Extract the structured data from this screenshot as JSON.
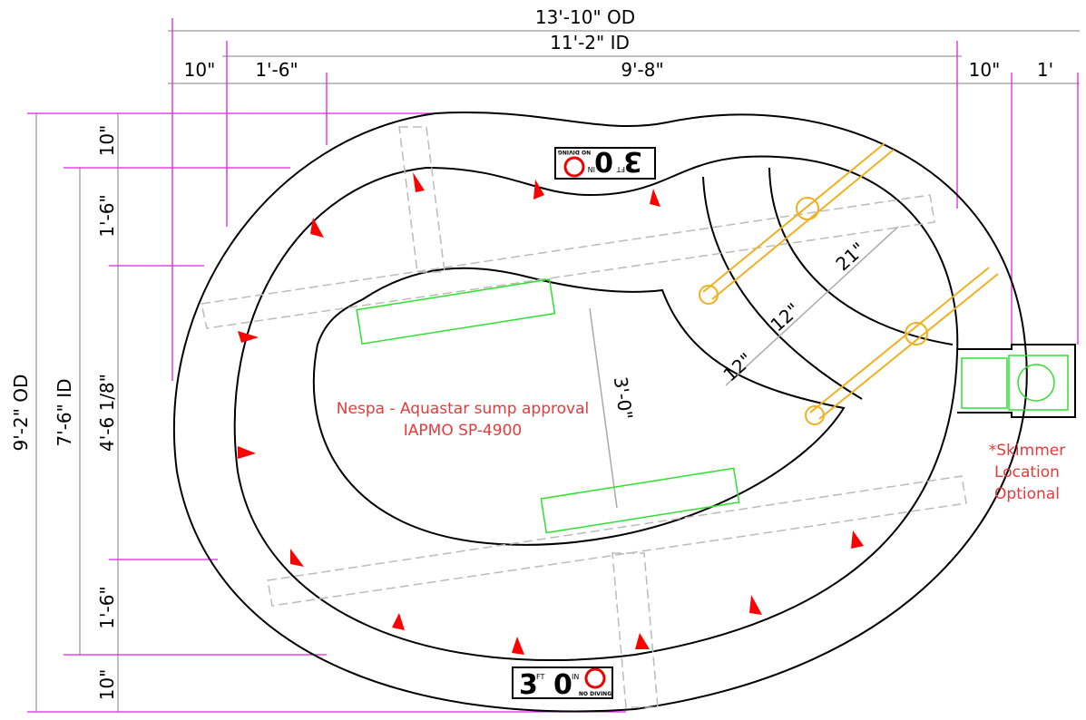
{
  "dimensions": {
    "top": {
      "overall": "13'-10\" OD",
      "inner": "11'-2\" ID",
      "segments": [
        "10\"",
        "1'-6\"",
        "9'-8\"",
        "10\"",
        "1'"
      ]
    },
    "left": {
      "overall": "9'-2\" OD",
      "inner": "7'-6\" ID",
      "segments": [
        "10\"",
        "1'-6\"",
        "4'-6 1/8\"",
        "1'-6\"",
        "10\""
      ]
    },
    "steps": [
      "21\"",
      "12\"",
      "12\""
    ],
    "island": "3'-0\""
  },
  "depth_marker": {
    "feet": "3",
    "feet_unit": "FT",
    "inches": "0",
    "inches_unit": "IN",
    "warning": "NO DIVING"
  },
  "notes": {
    "sump": [
      "Nespa - Aquastar sump approval",
      "IAPMO SP-4900"
    ],
    "skimmer": [
      "*Skimmer",
      "Location",
      "Optional"
    ]
  }
}
